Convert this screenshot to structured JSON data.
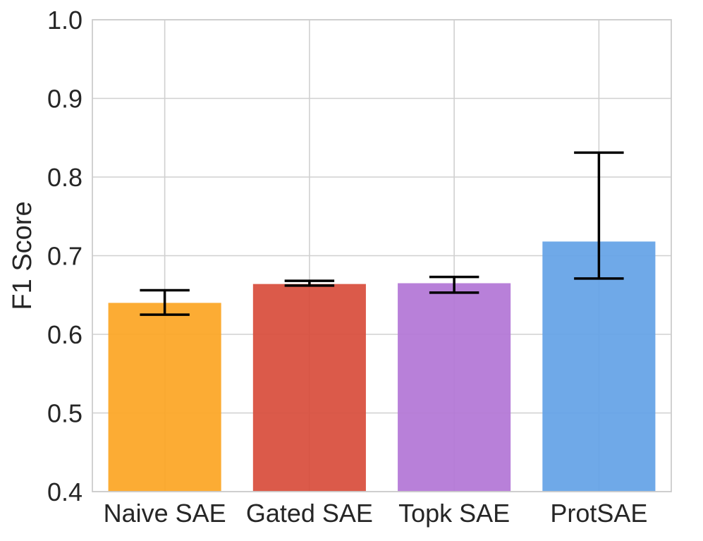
{
  "chart_data": {
    "type": "bar",
    "title": "",
    "xlabel": "",
    "ylabel": "F1 Score",
    "ylim": [
      0.4,
      1.0
    ],
    "yticks": [
      "0.4",
      "0.5",
      "0.6",
      "0.7",
      "0.8",
      "0.9",
      "1.0"
    ],
    "grid": true,
    "categories": [
      "Naive SAE",
      "Gated SAE",
      "Topk SAE",
      "ProtSAE"
    ],
    "values": [
      0.64,
      0.664,
      0.665,
      0.718
    ],
    "error_low": [
      0.625,
      0.662,
      0.653,
      0.671
    ],
    "error_high": [
      0.656,
      0.668,
      0.673,
      0.831
    ],
    "colors": [
      "#fca625",
      "#d84d3c",
      "#b376d6",
      "#64a2e6"
    ],
    "errorbar_color": "#000000"
  }
}
